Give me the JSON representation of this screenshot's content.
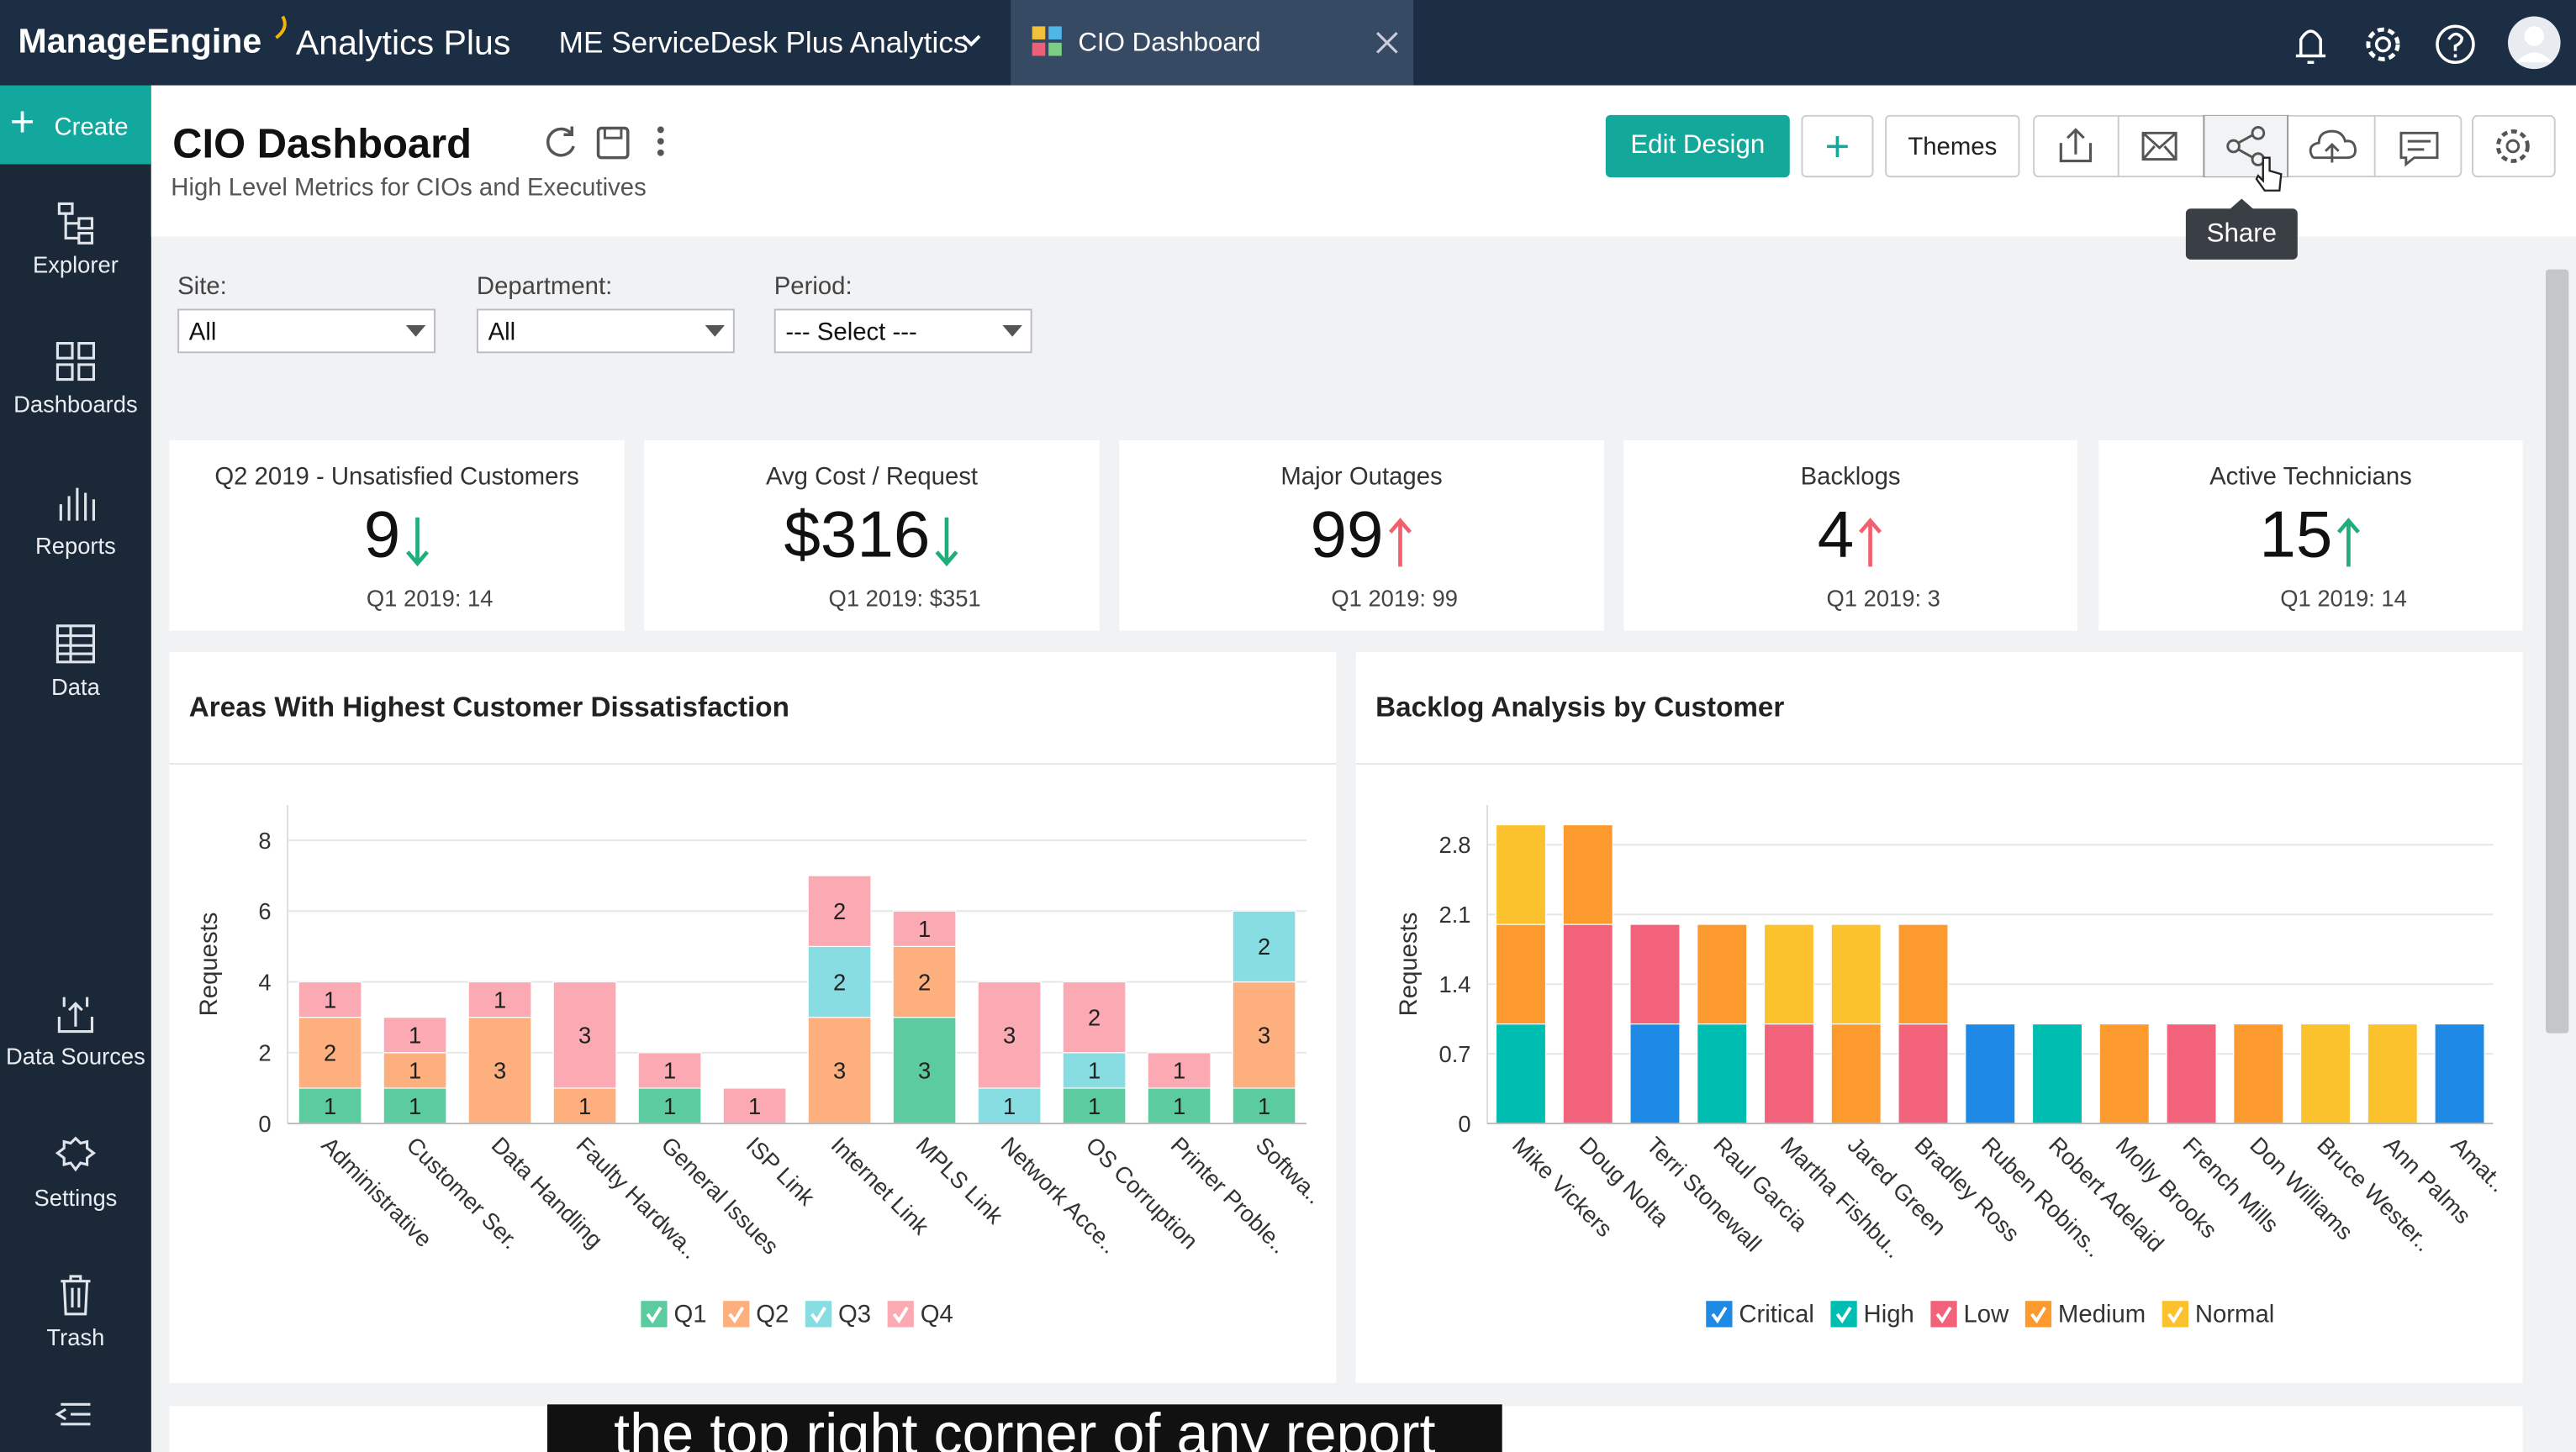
{
  "header": {
    "brand": "ManageEngine",
    "product": "Analytics Plus",
    "workspace": "ME ServiceDesk Plus Analytics",
    "tab": "CIO Dashboard"
  },
  "sidebar": {
    "create": "Create",
    "items": [
      "Explorer",
      "Dashboards",
      "Reports",
      "Data",
      "Data Sources",
      "Settings",
      "Trash"
    ]
  },
  "dashboard": {
    "title": "CIO Dashboard",
    "subtitle": "High Level Metrics for CIOs and Executives",
    "edit_button": "Edit Design",
    "themes_button": "Themes",
    "tooltip": "Share"
  },
  "filters": [
    {
      "label": "Site:",
      "value": "All"
    },
    {
      "label": "Department:",
      "value": "All"
    },
    {
      "label": "Period:",
      "value": "--- Select ---"
    }
  ],
  "kpis": [
    {
      "title": "Q2 2019 - Unsatisfied Customers",
      "value": "9",
      "trend": "down",
      "trend_color": "#1fae7a",
      "comparison": "Q1 2019: 14"
    },
    {
      "title": "Avg Cost / Request",
      "value": "$316",
      "trend": "down",
      "trend_color": "#1fae7a",
      "comparison": "Q1 2019: $351"
    },
    {
      "title": "Major Outages",
      "value": "99",
      "trend": "up",
      "trend_color": "#f0606e",
      "comparison": "Q1 2019: 99"
    },
    {
      "title": "Backlogs",
      "value": "4",
      "trend": "up",
      "trend_color": "#f0606e",
      "comparison": "Q1 2019: 3"
    },
    {
      "title": "Active Technicians",
      "value": "15",
      "trend": "up",
      "trend_color": "#1fae7a",
      "comparison": "Q1 2019: 14"
    }
  ],
  "charts": [
    {
      "type": "bar",
      "stacked": true,
      "value_labels_shown": true,
      "title": "Areas With Highest Customer Dissatisfaction",
      "y_label": "Requests",
      "categories": [
        "Administrative",
        "Customer Ser.",
        "Data Handling",
        "Faulty Hardwa..",
        "General Issues",
        "ISP Link",
        "Internet Link",
        "MPLS Link",
        "Network Acce..",
        "OS Corruption",
        "Printer Proble..",
        "Softwa.."
      ],
      "series": [
        {
          "name": "Q1",
          "color": "#5ccca0",
          "values": [
            1,
            1,
            null,
            null,
            1,
            null,
            null,
            3,
            null,
            1,
            1,
            1
          ]
        },
        {
          "name": "Q2",
          "color": "#fdb07e",
          "values": [
            2,
            1,
            3,
            1,
            null,
            null,
            3,
            2,
            null,
            null,
            null,
            3
          ]
        },
        {
          "name": "Q3",
          "color": "#88dde3",
          "values": [
            null,
            null,
            null,
            null,
            null,
            null,
            2,
            null,
            1,
            1,
            null,
            2
          ]
        },
        {
          "name": "Q4",
          "color": "#fbaab4",
          "values": [
            1,
            1,
            1,
            3,
            1,
            1,
            2,
            1,
            3,
            2,
            1,
            null
          ]
        }
      ],
      "ylim": [
        0,
        9
      ],
      "yticks": [
        0,
        2,
        4,
        6,
        8
      ],
      "grid": true
    },
    {
      "type": "bar",
      "stacked": true,
      "value_labels_shown": false,
      "title": "Backlog Analysis by Customer",
      "y_label": "Requests",
      "categories": [
        "Mike Vickers",
        "Doug Nolta",
        "Terri Stonewall",
        "Raul Garcia",
        "Martha Fishbu..",
        "Jared Green",
        "Bradley Ross",
        "Ruben Robins..",
        "Robert Adelaid",
        "Molly Brooks",
        "French Mills",
        "Don Williams",
        "Bruce Wester..",
        "Ann Palms",
        "Amat.."
      ],
      "series": [
        {
          "name": "Critical",
          "color": "#1e8ae6",
          "values": [
            null,
            null,
            1,
            null,
            null,
            null,
            null,
            1,
            null,
            null,
            null,
            null,
            null,
            null,
            1
          ]
        },
        {
          "name": "High",
          "color": "#00bdb1",
          "values": [
            1,
            null,
            null,
            1,
            null,
            null,
            null,
            null,
            1,
            null,
            null,
            null,
            null,
            null,
            null
          ]
        },
        {
          "name": "Low",
          "color": "#f2637b",
          "values": [
            null,
            2,
            1,
            null,
            1,
            null,
            1,
            null,
            null,
            null,
            1,
            null,
            null,
            null,
            null
          ]
        },
        {
          "name": "Medium",
          "color": "#fd9a2e",
          "values": [
            1,
            1,
            null,
            1,
            null,
            1,
            1,
            null,
            null,
            1,
            null,
            1,
            null,
            null,
            null
          ]
        },
        {
          "name": "Normal",
          "color": "#fcc22d",
          "values": [
            1,
            null,
            null,
            null,
            1,
            1,
            null,
            null,
            null,
            null,
            null,
            null,
            1,
            1,
            null
          ]
        }
      ],
      "ylim": [
        0,
        3.2
      ],
      "yticks": [
        0,
        0.7,
        1.4,
        2.1,
        2.8
      ],
      "grid": true
    }
  ],
  "caption": "the top right corner of any report"
}
